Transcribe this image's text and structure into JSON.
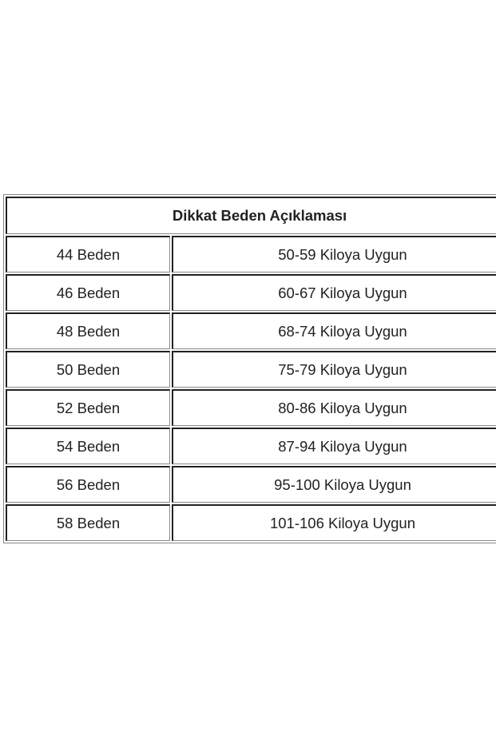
{
  "table": {
    "title": "Dikkat Beden Açıklaması",
    "rows": [
      {
        "size": "44 Beden",
        "weight": "50-59 Kiloya Uygun"
      },
      {
        "size": "46 Beden",
        "weight": "60-67 Kiloya Uygun"
      },
      {
        "size": "48 Beden",
        "weight": "68-74 Kiloya Uygun"
      },
      {
        "size": "50 Beden",
        "weight": "75-79 Kiloya Uygun"
      },
      {
        "size": "52 Beden",
        "weight": "80-86 Kiloya Uygun"
      },
      {
        "size": "54 Beden",
        "weight": "87-94 Kiloya Uygun"
      },
      {
        "size": "56 Beden",
        "weight": "95-100 Kiloya Uygun"
      },
      {
        "size": "58 Beden",
        "weight": "101-106 Kiloya Uygun"
      }
    ]
  }
}
